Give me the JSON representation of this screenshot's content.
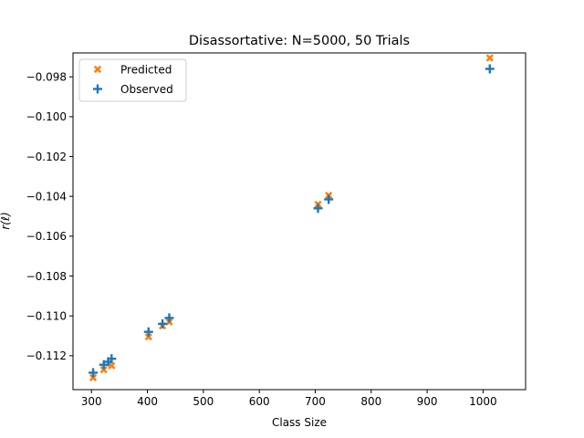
{
  "chart_data": {
    "type": "scatter",
    "title": "Disassortative: N=5000, 50 Trials",
    "xlabel": "Class Size",
    "ylabel": "r(ℓ)",
    "xlim": [
      267,
      1076
    ],
    "ylim": [
      -0.1137,
      -0.0968
    ],
    "xticks": [
      300,
      400,
      500,
      600,
      700,
      800,
      900,
      1000
    ],
    "yticks": [
      -0.112,
      -0.11,
      -0.108,
      -0.106,
      -0.104,
      -0.102,
      -0.1,
      -0.098
    ],
    "xtick_labels": [
      "300",
      "400",
      "500",
      "600",
      "700",
      "800",
      "900",
      "1000"
    ],
    "ytick_labels": [
      "−0.112",
      "−0.110",
      "−0.108",
      "−0.106",
      "−0.104",
      "−0.102",
      "−0.100",
      "−0.098"
    ],
    "legend": {
      "position": "top-left"
    },
    "series": [
      {
        "name": "Predicted",
        "marker": "x",
        "color": "#ff7f0e",
        "points": [
          [
            303,
            -0.1131
          ],
          [
            322,
            -0.1127
          ],
          [
            336,
            -0.1125
          ],
          [
            402,
            -0.11105
          ],
          [
            427,
            -0.1105
          ],
          [
            439,
            -0.1103
          ],
          [
            705,
            -0.1044
          ],
          [
            724,
            -0.10395
          ],
          [
            1012,
            -0.09705
          ]
        ]
      },
      {
        "name": "Observed",
        "marker": "+",
        "color": "#1f77b4",
        "points": [
          [
            303,
            -0.11285
          ],
          [
            322,
            -0.11245
          ],
          [
            330,
            -0.1123
          ],
          [
            336,
            -0.11215
          ],
          [
            402,
            -0.1108
          ],
          [
            427,
            -0.1104
          ],
          [
            439,
            -0.1101
          ],
          [
            705,
            -0.1046
          ],
          [
            724,
            -0.10415
          ],
          [
            1012,
            -0.0976
          ]
        ]
      }
    ]
  }
}
